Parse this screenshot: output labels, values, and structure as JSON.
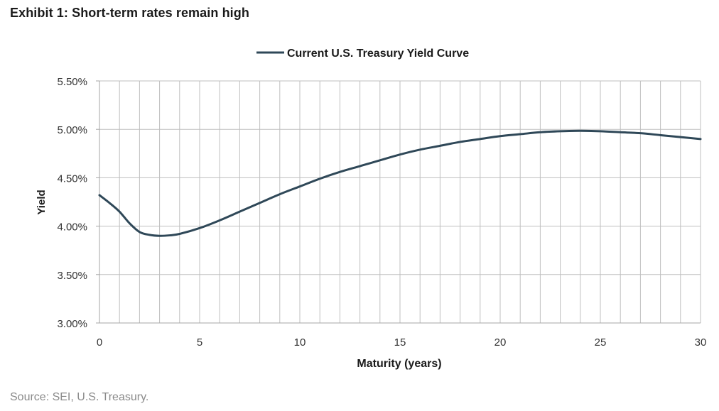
{
  "header": {
    "exhibit_title": "Exhibit 1:  Short-term rates remain high"
  },
  "chart_data": {
    "type": "line",
    "title": "",
    "xlabel": "Maturity (years)",
    "ylabel": "Yield",
    "xlim": [
      0,
      30
    ],
    "ylim": [
      3.0,
      5.5
    ],
    "x_ticks": [
      0,
      5,
      10,
      15,
      20,
      25,
      30
    ],
    "x_tick_labels": [
      "0",
      "5",
      "10",
      "15",
      "20",
      "25",
      "30"
    ],
    "y_ticks": [
      3.0,
      3.5,
      4.0,
      4.5,
      5.0,
      5.5
    ],
    "y_tick_labels": [
      "3.00%",
      "3.50%",
      "4.00%",
      "4.50%",
      "5.00%",
      "5.50%"
    ],
    "grid": true,
    "legend_position": "top-center",
    "colors": {
      "line": "#2f4858",
      "grid": "#bfbfbf",
      "axis": "#a6a6a6"
    },
    "series": [
      {
        "name": "Current U.S. Treasury Yield Curve",
        "x": [
          0,
          0.5,
          1,
          1.5,
          2,
          2.5,
          3,
          3.5,
          4,
          5,
          6,
          7,
          8,
          9,
          10,
          11,
          12,
          13,
          14,
          15,
          16,
          17,
          18,
          19,
          20,
          21,
          22,
          23,
          24,
          25,
          26,
          27,
          28,
          29,
          30
        ],
        "values": [
          4.32,
          4.24,
          4.15,
          4.03,
          3.94,
          3.91,
          3.9,
          3.905,
          3.92,
          3.98,
          4.06,
          4.15,
          4.24,
          4.33,
          4.41,
          4.49,
          4.56,
          4.62,
          4.68,
          4.74,
          4.79,
          4.83,
          4.87,
          4.9,
          4.93,
          4.95,
          4.97,
          4.98,
          4.985,
          4.98,
          4.97,
          4.96,
          4.94,
          4.92,
          4.9
        ]
      }
    ]
  },
  "footer": {
    "source": "Source: SEI, U.S. Treasury."
  }
}
